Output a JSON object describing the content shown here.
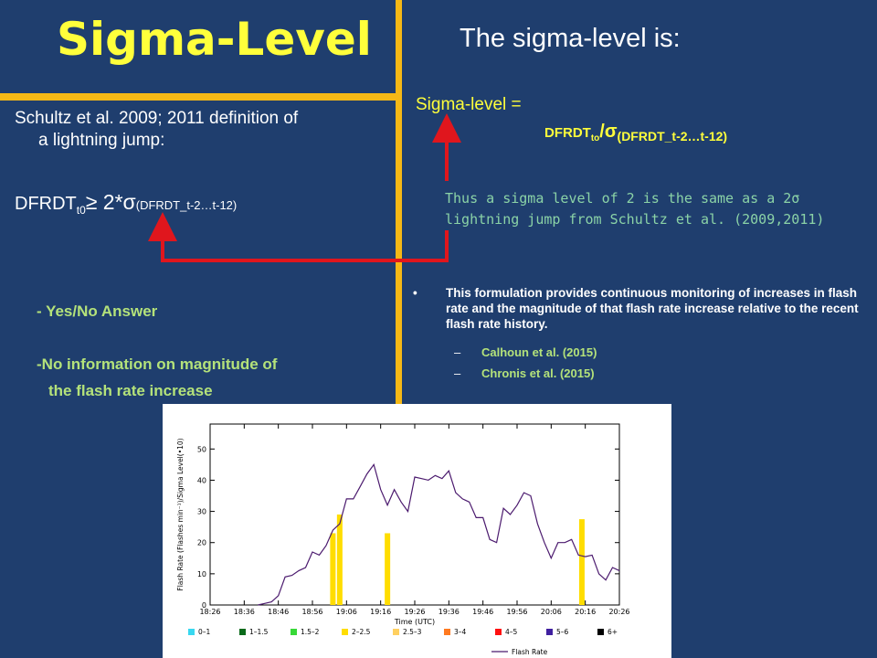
{
  "title": "Sigma-Level",
  "subtitle": "The sigma-level is:",
  "left": {
    "ref_line1": "Schultz et al. 2009; 2011 definition of",
    "ref_line2": "a lightning jump:",
    "dfrdt_main": "DFRDT",
    "dfrdt_sub": "t0",
    "dfrdt_ge": "≥ 2*σ",
    "dfrdt_window": "(DFRDT_t-2…t-12)",
    "note1": "- Yes/No Answer",
    "note2": "-No information on magnitude of",
    "note3": "the flash rate increase"
  },
  "right": {
    "sigma_label": "Sigma-level =",
    "formula_main": "DFRDT",
    "formula_sub": "to",
    "formula_sigma": "/σ",
    "formula_window": "(DFRDT_t-2…t-12)",
    "mono_line1": "Thus a sigma level of 2 is the same as a 2σ",
    "mono_line2": "lightning jump from Schultz et al. (2009,2011)",
    "bullet_dot": "•",
    "bullet_text": "This formulation provides  continuous monitoring of increases in flash rate and the magnitude of that flash rate increase relative to the recent flash rate history.",
    "sub_dash": "–",
    "sub1": "Calhoun et al. (2015)",
    "sub2": "Chronis et al. (2015)"
  },
  "colors": {
    "background": "#1f3e6e",
    "accent_gold": "#f5b816",
    "title_yellow": "#ffff3b",
    "note_green": "#b4e27a",
    "arrow_red": "#e0161d"
  },
  "chart_data": {
    "type": "line",
    "ylabel": "Flash Rate (Flashes min⁻¹)/Sigma Level(•10)",
    "xlabel": "Time (UTC)",
    "x_ticks": [
      "18:26",
      "18:36",
      "18:46",
      "18:56",
      "19:06",
      "19:16",
      "19:26",
      "19:36",
      "19:46",
      "19:56",
      "20:06",
      "20:16",
      "20:26"
    ],
    "y_ticks": [
      0,
      10,
      20,
      30,
      40,
      50
    ],
    "ylim": [
      0,
      58
    ],
    "xlim": [
      0,
      120
    ],
    "series": [
      {
        "name": "Flash Rate",
        "type": "line",
        "color": "#4b1a6e",
        "points": [
          [
            14,
            0
          ],
          [
            16,
            0.5
          ],
          [
            18,
            1
          ],
          [
            20,
            3
          ],
          [
            22,
            9
          ],
          [
            24,
            9.5
          ],
          [
            26,
            11
          ],
          [
            28,
            12
          ],
          [
            30,
            17
          ],
          [
            32,
            16
          ],
          [
            34,
            19
          ],
          [
            36,
            24
          ],
          [
            38,
            26
          ],
          [
            40,
            34
          ],
          [
            42,
            34
          ],
          [
            44,
            38
          ],
          [
            46,
            42
          ],
          [
            48,
            45
          ],
          [
            50,
            37
          ],
          [
            52,
            32
          ],
          [
            54,
            37
          ],
          [
            56,
            33
          ],
          [
            58,
            30
          ],
          [
            60,
            41
          ],
          [
            62,
            40.5
          ],
          [
            64,
            40
          ],
          [
            66,
            41.5
          ],
          [
            68,
            40.5
          ],
          [
            70,
            43
          ],
          [
            72,
            36
          ],
          [
            74,
            34
          ],
          [
            76,
            33
          ],
          [
            78,
            28
          ],
          [
            80,
            28
          ],
          [
            82,
            21
          ],
          [
            84,
            20
          ],
          [
            86,
            31
          ],
          [
            88,
            29
          ],
          [
            90,
            32
          ],
          [
            92,
            36
          ],
          [
            94,
            35
          ],
          [
            96,
            26
          ],
          [
            98,
            20
          ],
          [
            100,
            15
          ],
          [
            102,
            20
          ],
          [
            104,
            20
          ],
          [
            106,
            21
          ],
          [
            108,
            16
          ],
          [
            110,
            15.5
          ],
          [
            112,
            16
          ],
          [
            114,
            10
          ],
          [
            116,
            8
          ],
          [
            118,
            12
          ],
          [
            120,
            11
          ]
        ]
      },
      {
        "name": "Sigma Level",
        "type": "bar",
        "color": "#ffdd00",
        "points": [
          [
            36,
            23
          ],
          [
            38,
            29
          ],
          [
            52,
            23
          ],
          [
            109,
            27.5
          ]
        ]
      }
    ],
    "legend": [
      "0–1",
      "1–1.5",
      "1.5–2",
      "2–2.5",
      "2.5–3",
      "3–4",
      "4–5",
      "5–6",
      "6+"
    ],
    "legend_colors": [
      "#38d8f0",
      "#0a6a1a",
      "#38d838",
      "#ffdd00",
      "#ffd060",
      "#ff7a20",
      "#ff1010",
      "#4020a0",
      "#000000"
    ],
    "legend_line": "Flash Rate"
  }
}
